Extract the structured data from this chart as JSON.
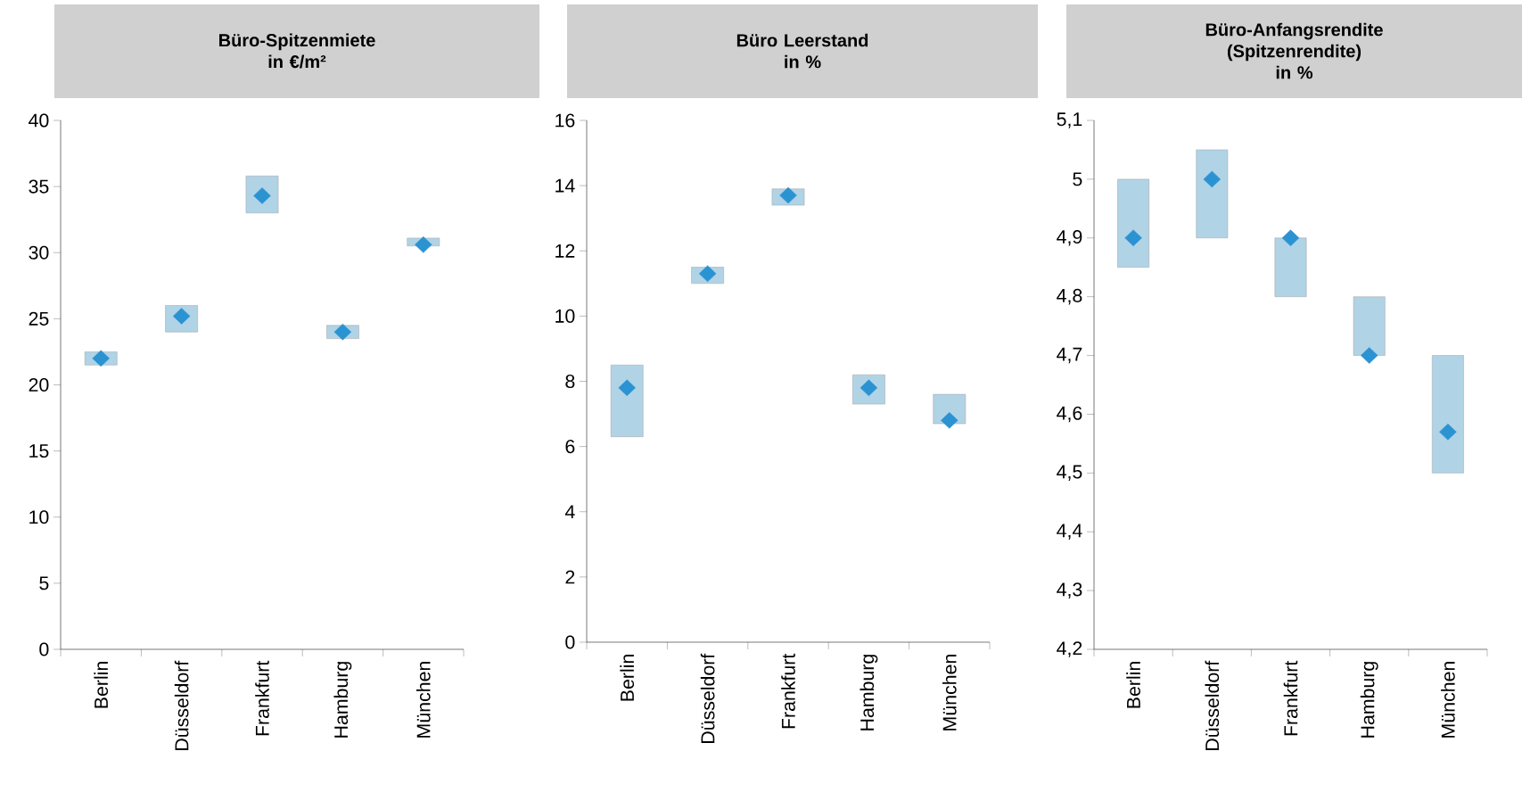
{
  "chart_data": [
    {
      "type": "bar",
      "title": "Büro-Spitzenmiete",
      "subtitle": "in €/m²",
      "categories": [
        "Berlin",
        "Düsseldorf",
        "Frankfurt",
        "Hamburg",
        "München"
      ],
      "ylim": [
        0,
        40
      ],
      "yticks": [
        0,
        5,
        10,
        15,
        20,
        25,
        30,
        35,
        40
      ],
      "series": [
        {
          "color": "#b0d3e6",
          "base": [
            21.5,
            24.0,
            33.0,
            23.5,
            30.5
          ],
          "values": [
            1.0,
            2.0,
            2.8,
            1.0,
            0.6
          ]
        },
        {
          "type": "scatter",
          "color": "#2b93d1",
          "marker": "diamond",
          "values": [
            22.0,
            25.2,
            34.3,
            24.0,
            30.6
          ]
        }
      ]
    },
    {
      "type": "bar",
      "title": "Büro Leerstand",
      "subtitle": "in %",
      "categories": [
        "Berlin",
        "Düsseldorf",
        "Frankfurt",
        "Hamburg",
        "München"
      ],
      "ylim": [
        0,
        16
      ],
      "yticks": [
        0,
        2,
        4,
        6,
        8,
        10,
        12,
        14,
        16
      ],
      "series": [
        {
          "color": "#b0d3e6",
          "base": [
            6.3,
            11.0,
            13.4,
            7.3,
            6.7
          ],
          "values": [
            2.2,
            0.5,
            0.5,
            0.9,
            0.9
          ]
        },
        {
          "type": "scatter",
          "color": "#2b93d1",
          "marker": "diamond",
          "values": [
            7.8,
            11.3,
            13.7,
            7.8,
            6.8
          ]
        }
      ]
    },
    {
      "type": "bar",
      "title": "Büro-Anfangsrendite (Spitzenrendite)",
      "subtitle": "in %",
      "categories": [
        "Berlin",
        "Düsseldorf",
        "Frankfurt",
        "Hamburg",
        "München"
      ],
      "ylim": [
        4.2,
        5.1
      ],
      "yticks": [
        {
          "value": 4.2,
          "label": "4,2"
        },
        {
          "value": 4.3,
          "label": "4,3"
        },
        {
          "value": 4.4,
          "label": "4,4"
        },
        {
          "value": 4.5,
          "label": "4,5"
        },
        {
          "value": 4.6,
          "label": "4,6"
        },
        {
          "value": 4.7,
          "label": "4,7"
        },
        {
          "value": 4.8,
          "label": "4,8"
        },
        {
          "value": 4.9,
          "label": "4,9"
        },
        5,
        {
          "value": 5.1,
          "label": "5,1"
        }
      ],
      "series": [
        {
          "color": "#b0d3e6",
          "base": [
            4.85,
            4.9,
            4.8,
            4.7,
            4.5
          ],
          "values": [
            0.15,
            0.15,
            0.1,
            0.1,
            0.2
          ]
        },
        {
          "type": "scatter",
          "color": "#2b93d1",
          "marker": "diamond",
          "values": [
            4.9,
            5.0,
            4.9,
            4.7,
            4.57
          ]
        }
      ]
    }
  ]
}
